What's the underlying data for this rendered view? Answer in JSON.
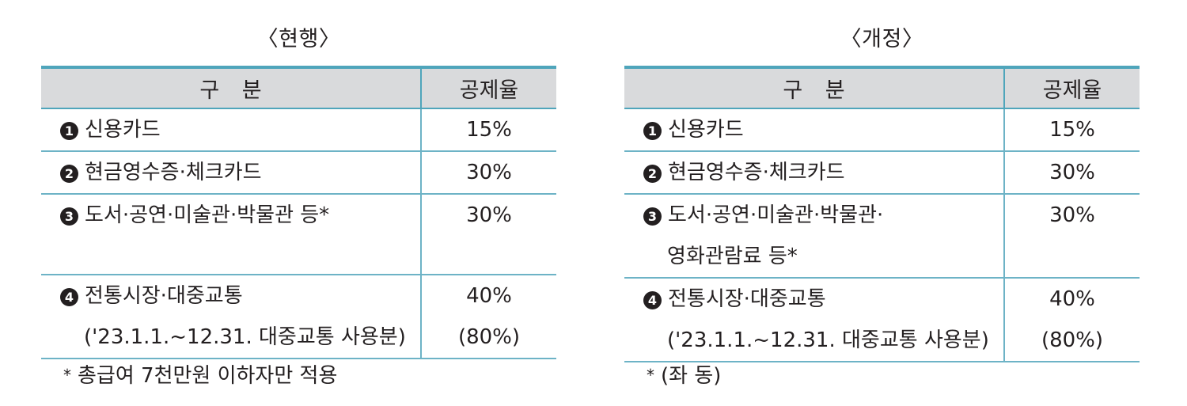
{
  "left": {
    "title": "〈현행〉",
    "header": {
      "category": "구 분",
      "rate": "공제율"
    },
    "rows": [
      {
        "num": "1",
        "lines": [
          "신용카드"
        ],
        "rate": [
          "15%"
        ]
      },
      {
        "num": "2",
        "lines": [
          "현금영수증·체크카드"
        ],
        "rate": [
          "30%"
        ]
      },
      {
        "num": "3",
        "lines": [
          "도서·공연·미술관·박물관 등*"
        ],
        "rate": [
          "30%"
        ]
      },
      {
        "num": "4",
        "lines": [
          "전통시장·대중교통",
          "('23.1.1.~12.31. 대중교통 사용분)"
        ],
        "rate": [
          "40%",
          "(80%)"
        ]
      }
    ],
    "footnote": {
      "mark": "*",
      "text": "총급여 7천만원 이하자만 적용"
    }
  },
  "right": {
    "title": "〈개정〉",
    "header": {
      "category": "구 분",
      "rate": "공제율"
    },
    "rows": [
      {
        "num": "1",
        "lines": [
          "신용카드"
        ],
        "rate": [
          "15%"
        ]
      },
      {
        "num": "2",
        "lines": [
          "현금영수증·체크카드"
        ],
        "rate": [
          "30%"
        ]
      },
      {
        "num": "3",
        "lines": [
          "도서·공연·미술관·박물관·",
          "영화관람료 등*"
        ],
        "rate": [
          "30%"
        ]
      },
      {
        "num": "4",
        "lines": [
          "전통시장·대중교통",
          "('23.1.1.~12.31. 대중교통 사용분)"
        ],
        "rate": [
          "40%",
          "(80%)"
        ]
      }
    ],
    "footnote": {
      "mark": "*",
      "text": "(좌 동)"
    }
  },
  "colors": {
    "header_bg": "#d9dadc",
    "rule": "#4fa5bb",
    "text": "#231f20"
  },
  "icons": {
    "row_number": "filled-circle-number-icon"
  }
}
